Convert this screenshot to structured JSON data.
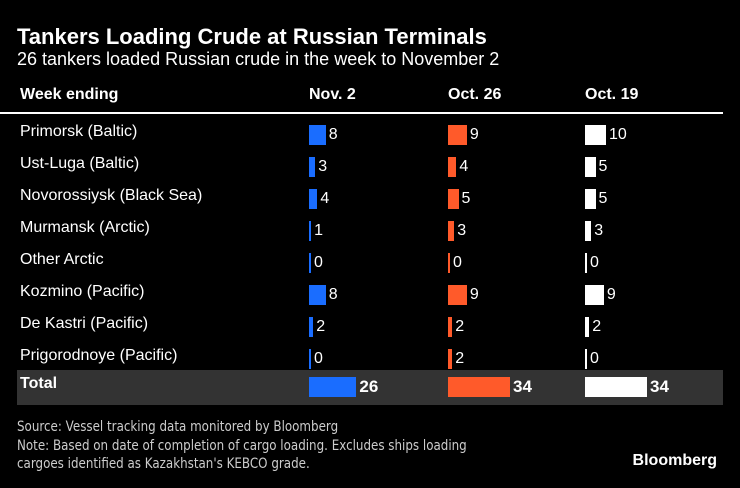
{
  "chart_data": {
    "type": "table",
    "title": "Tankers Loading Crude at Russian Terminals",
    "subtitle": "26 tankers loaded Russian crude in the week to November 2",
    "row_header": "Week ending",
    "columns": [
      "Nov. 2",
      "Oct. 26",
      "Oct. 19"
    ],
    "colors": [
      "#1a6dff",
      "#ff5a2a",
      "#ffffff"
    ],
    "rows": [
      {
        "label": "Primorsk (Baltic)",
        "values": [
          8,
          9,
          10
        ]
      },
      {
        "label": "Ust-Luga (Baltic)",
        "values": [
          3,
          4,
          5
        ]
      },
      {
        "label": "Novorossiysk (Black Sea)",
        "values": [
          4,
          5,
          5
        ]
      },
      {
        "label": "Murmansk (Arctic)",
        "values": [
          1,
          3,
          3
        ]
      },
      {
        "label": "Other Arctic",
        "values": [
          0,
          0,
          0
        ]
      },
      {
        "label": "Kozmino (Pacific)",
        "values": [
          8,
          9,
          9
        ]
      },
      {
        "label": "De Kastri (Pacific)",
        "values": [
          2,
          2,
          2
        ]
      },
      {
        "label": "Prigorodnoye (Pacific)",
        "values": [
          0,
          2,
          0
        ]
      }
    ],
    "total": {
      "label": "Total",
      "values": [
        26,
        34,
        34
      ]
    }
  },
  "footer": {
    "source": "Source: Vessel tracking data monitored by Bloomberg",
    "note1": "Note: Based on date of completion of cargo loading. Excludes ships loading",
    "note2": "cargoes identified as Kazakhstan's KEBCO grade.",
    "logo": "Bloomberg"
  }
}
